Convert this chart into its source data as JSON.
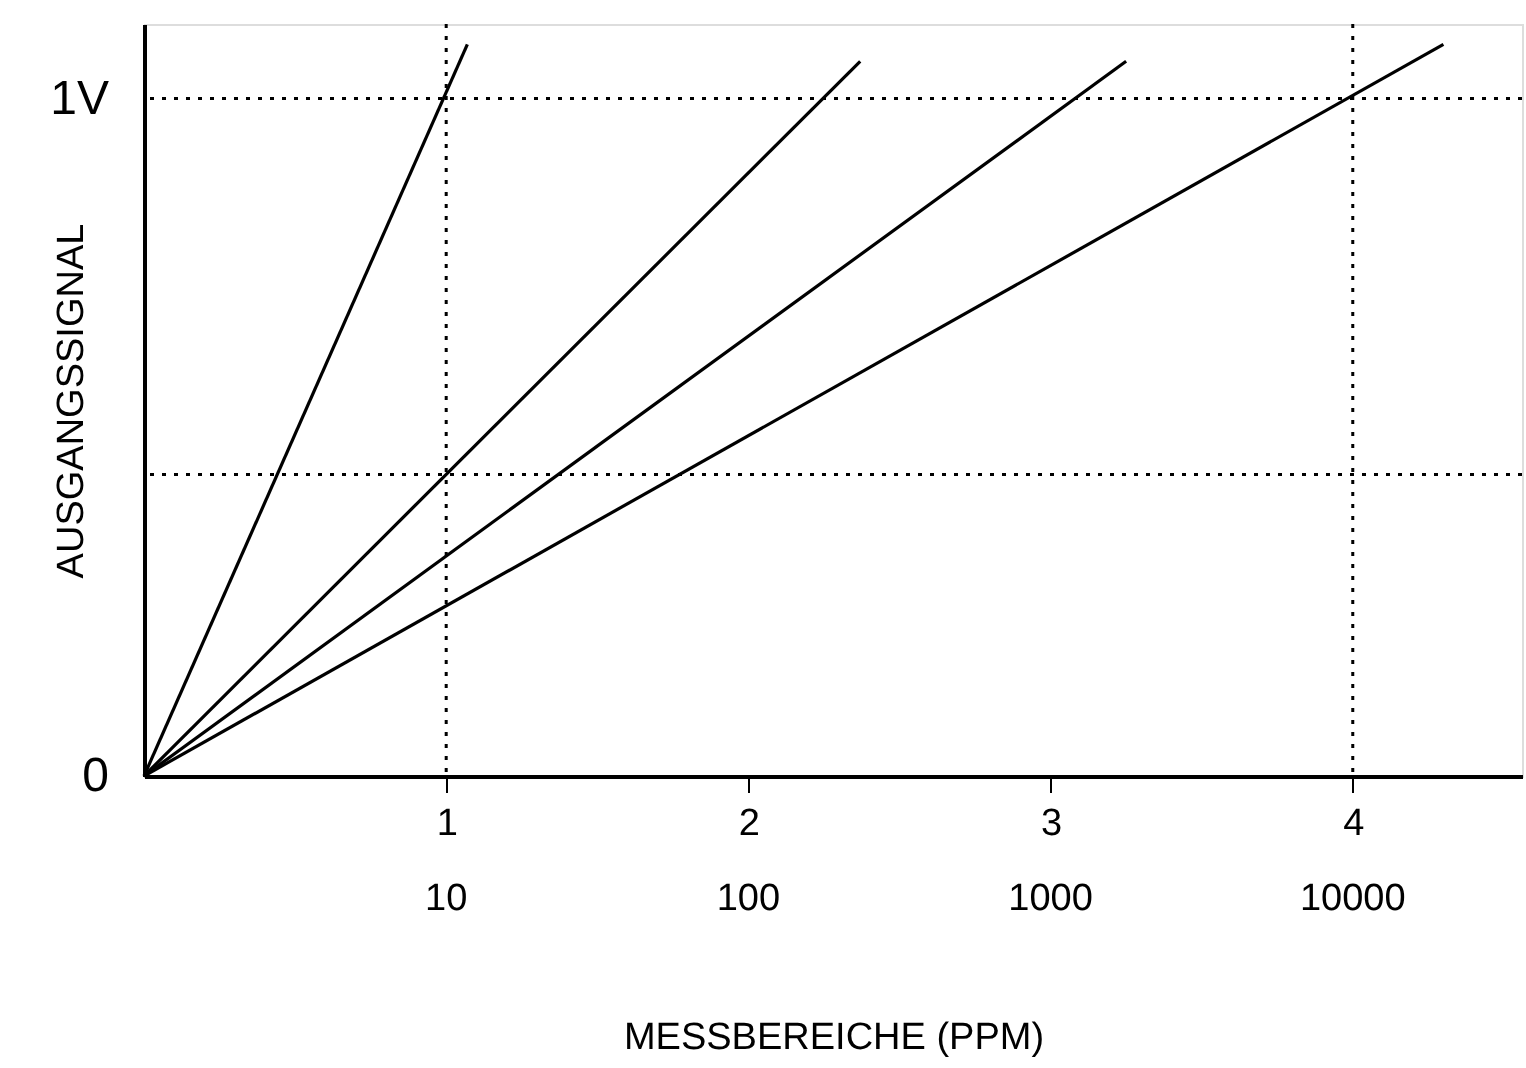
{
  "chart_data": {
    "type": "line",
    "xlabel": "MESSBEREICHE (PPM)",
    "ylabel": "AUSGANGSSIGNAL",
    "xlim": [
      0,
      4.56
    ],
    "ylim": [
      0,
      1.11
    ],
    "xticks": [
      1,
      2,
      3,
      4
    ],
    "x2lim": [
      1,
      36300
    ],
    "x2ticks": [
      10,
      100,
      1000,
      10000
    ],
    "yticks": [
      {
        "value": 0,
        "label": "0"
      },
      {
        "value": 1,
        "label": "1V"
      }
    ],
    "series": [
      {
        "color": "#000000",
        "x": [
          0,
          1.07
        ],
        "values": [
          0,
          1.08
        ]
      },
      {
        "color": "#000000",
        "x": [
          0,
          2.37
        ],
        "values": [
          0,
          1.055
        ]
      },
      {
        "color": "#000000",
        "x": [
          0,
          3.25
        ],
        "values": [
          0,
          1.055
        ]
      },
      {
        "color": "#000000",
        "x": [
          0,
          4.3
        ],
        "values": [
          0,
          1.08
        ]
      }
    ],
    "ref_lines": [
      {
        "axis": "x",
        "value": 1,
        "color": "#000000",
        "line_style": "dotted"
      },
      {
        "axis": "x",
        "value": 4,
        "color": "#000000",
        "line_style": "dotted"
      },
      {
        "axis": "y",
        "value": 1,
        "color": "#000000",
        "line_style": "dotted"
      },
      {
        "axis": "y",
        "value": 0.445,
        "color": "#000000",
        "line_style": "dotted"
      }
    ],
    "grid": false,
    "log": "x2",
    "marker": "none",
    "line_style": "solid"
  }
}
